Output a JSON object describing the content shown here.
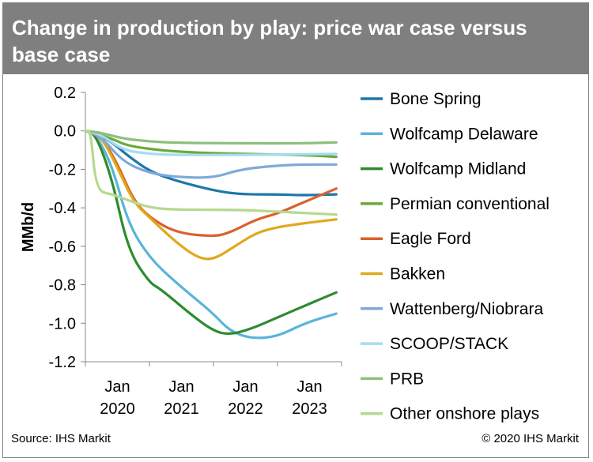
{
  "chart_data": {
    "type": "line",
    "title": "Change in production by play: price war case versus base case",
    "ylabel": "MMb/d",
    "xlabel": "",
    "ylim": [
      -1.2,
      0.2
    ],
    "yticks": [
      0.2,
      0.0,
      -0.2,
      -0.4,
      -0.6,
      -0.8,
      -1.0,
      -1.2
    ],
    "ytick_labels": [
      "0.2",
      "0.0",
      "-0.2",
      "-0.4",
      "-0.6",
      "-0.8",
      "-1.0",
      "-1.2"
    ],
    "xlim": [
      "2020-01",
      "2024-01"
    ],
    "xticks": [
      {
        "date": "2020-01",
        "line1": "Jan",
        "line2": "2020"
      },
      {
        "date": "2021-01",
        "line1": "Jan",
        "line2": "2021"
      },
      {
        "date": "2022-01",
        "line1": "Jan",
        "line2": "2022"
      },
      {
        "date": "2023-01",
        "line1": "Jan",
        "line2": "2023"
      }
    ],
    "grid": false,
    "legend_position": "right",
    "series": [
      {
        "name": "Bone Spring",
        "color": "#1f77a8",
        "points": [
          [
            "2020-01",
            0.0
          ],
          [
            "2020-03",
            -0.01
          ],
          [
            "2020-06",
            -0.06
          ],
          [
            "2020-09",
            -0.13
          ],
          [
            "2021-01",
            -0.21
          ],
          [
            "2021-06",
            -0.26
          ],
          [
            "2022-01",
            -0.31
          ],
          [
            "2022-06",
            -0.33
          ],
          [
            "2023-01",
            -0.33
          ],
          [
            "2023-06",
            -0.335
          ],
          [
            "2023-12",
            -0.33
          ]
        ]
      },
      {
        "name": "Wolfcamp Delaware",
        "color": "#5bb4d9",
        "points": [
          [
            "2020-01",
            0.0
          ],
          [
            "2020-03",
            -0.02
          ],
          [
            "2020-06",
            -0.18
          ],
          [
            "2020-09",
            -0.48
          ],
          [
            "2021-01",
            -0.66
          ],
          [
            "2021-06",
            -0.79
          ],
          [
            "2022-01",
            -0.95
          ],
          [
            "2022-04",
            -1.04
          ],
          [
            "2022-08",
            -1.08
          ],
          [
            "2023-01",
            -1.07
          ],
          [
            "2023-06",
            -1.0
          ],
          [
            "2023-12",
            -0.95
          ]
        ]
      },
      {
        "name": "Wolfcamp Midland",
        "color": "#2e8b2e",
        "points": [
          [
            "2020-01",
            0.0
          ],
          [
            "2020-03",
            -0.02
          ],
          [
            "2020-06",
            -0.25
          ],
          [
            "2020-09",
            -0.62
          ],
          [
            "2021-01",
            -0.79
          ],
          [
            "2021-03",
            -0.82
          ],
          [
            "2021-09",
            -0.96
          ],
          [
            "2022-01",
            -1.04
          ],
          [
            "2022-04",
            -1.06
          ],
          [
            "2022-08",
            -1.03
          ],
          [
            "2023-01",
            -0.97
          ],
          [
            "2023-06",
            -0.91
          ],
          [
            "2023-12",
            -0.84
          ]
        ]
      },
      {
        "name": "Permian conventional",
        "color": "#6aaa3a",
        "points": [
          [
            "2020-01",
            0.0
          ],
          [
            "2020-06",
            -0.04
          ],
          [
            "2020-09",
            -0.08
          ],
          [
            "2021-06",
            -0.11
          ],
          [
            "2022-06",
            -0.12
          ],
          [
            "2023-06",
            -0.125
          ],
          [
            "2023-12",
            -0.135
          ]
        ]
      },
      {
        "name": "Eagle Ford",
        "color": "#d9622b",
        "points": [
          [
            "2020-01",
            0.0
          ],
          [
            "2020-04",
            -0.03
          ],
          [
            "2020-07",
            -0.17
          ],
          [
            "2020-10",
            -0.36
          ],
          [
            "2021-01",
            -0.45
          ],
          [
            "2021-06",
            -0.53
          ],
          [
            "2022-01",
            -0.55
          ],
          [
            "2022-04",
            -0.53
          ],
          [
            "2022-09",
            -0.46
          ],
          [
            "2023-01",
            -0.43
          ],
          [
            "2023-06",
            -0.37
          ],
          [
            "2023-12",
            -0.3
          ]
        ]
      },
      {
        "name": "Bakken",
        "color": "#e0a81c",
        "points": [
          [
            "2020-01",
            0.0
          ],
          [
            "2020-04",
            -0.03
          ],
          [
            "2020-07",
            -0.19
          ],
          [
            "2020-10",
            -0.37
          ],
          [
            "2021-01",
            -0.45
          ],
          [
            "2021-06",
            -0.58
          ],
          [
            "2021-10",
            -0.66
          ],
          [
            "2022-01",
            -0.67
          ],
          [
            "2022-05",
            -0.6
          ],
          [
            "2022-09",
            -0.53
          ],
          [
            "2023-01",
            -0.5
          ],
          [
            "2023-06",
            -0.48
          ],
          [
            "2023-12",
            -0.46
          ]
        ]
      },
      {
        "name": "Wattenberg/Niobrara",
        "color": "#7fa9d8",
        "points": [
          [
            "2020-01",
            0.0
          ],
          [
            "2020-04",
            -0.03
          ],
          [
            "2020-08",
            -0.16
          ],
          [
            "2021-01",
            -0.22
          ],
          [
            "2021-06",
            -0.24
          ],
          [
            "2022-01",
            -0.245
          ],
          [
            "2022-06",
            -0.2
          ],
          [
            "2023-01",
            -0.18
          ],
          [
            "2023-06",
            -0.175
          ],
          [
            "2023-12",
            -0.175
          ]
        ]
      },
      {
        "name": "SCOOP/STACK",
        "color": "#a6dcf0",
        "points": [
          [
            "2020-01",
            0.0
          ],
          [
            "2020-04",
            -0.02
          ],
          [
            "2020-08",
            -0.1
          ],
          [
            "2021-01",
            -0.12
          ],
          [
            "2021-06",
            -0.125
          ],
          [
            "2022-06",
            -0.125
          ],
          [
            "2023-12",
            -0.12
          ]
        ]
      },
      {
        "name": "PRB",
        "color": "#8cbf7c",
        "points": [
          [
            "2020-01",
            0.0
          ],
          [
            "2020-04",
            -0.01
          ],
          [
            "2020-08",
            -0.04
          ],
          [
            "2021-01",
            -0.055
          ],
          [
            "2021-06",
            -0.062
          ],
          [
            "2022-06",
            -0.065
          ],
          [
            "2023-06",
            -0.065
          ],
          [
            "2023-12",
            -0.06
          ]
        ]
      },
      {
        "name": "Other onshore plays",
        "color": "#b5d98e",
        "points": [
          [
            "2020-01",
            0.0
          ],
          [
            "2020-02",
            0.0
          ],
          [
            "2020-03",
            -0.31
          ],
          [
            "2020-06",
            -0.33
          ],
          [
            "2020-09",
            -0.36
          ],
          [
            "2021-01",
            -0.4
          ],
          [
            "2021-06",
            -0.41
          ],
          [
            "2022-06",
            -0.41
          ],
          [
            "2023-01",
            -0.42
          ],
          [
            "2023-12",
            -0.435
          ]
        ]
      }
    ]
  },
  "footer": {
    "source": "Source: IHS Markit",
    "copyright": "© 2020 IHS Markit"
  }
}
